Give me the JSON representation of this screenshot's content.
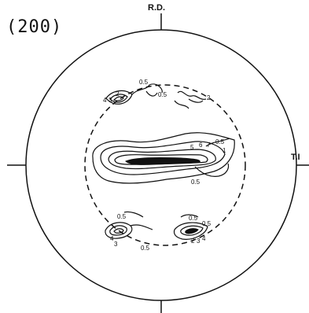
{
  "figure": {
    "title": "(200)",
    "axis_labels": {
      "top": "R.D.",
      "right": "T.I"
    },
    "contour_labels": {
      "tl_a": "4",
      "tl_b": "3",
      "tl_c": "2",
      "top_c1": "0.5",
      "top_c2": "0.5",
      "top_r": "2",
      "mid_5": "5",
      "mid_6": "6",
      "mid_7": "7",
      "mid_r05": "0.5",
      "mid_r1": "1",
      "mid_b05": "0.5",
      "bl_05": "0.5",
      "bl_4": "4",
      "bl_3": "3",
      "bot_05": "0.5",
      "br_05a": "0.5",
      "br_05b": "0.5",
      "br_2": "2",
      "br_3": "3",
      "br_4": "4"
    }
  }
}
